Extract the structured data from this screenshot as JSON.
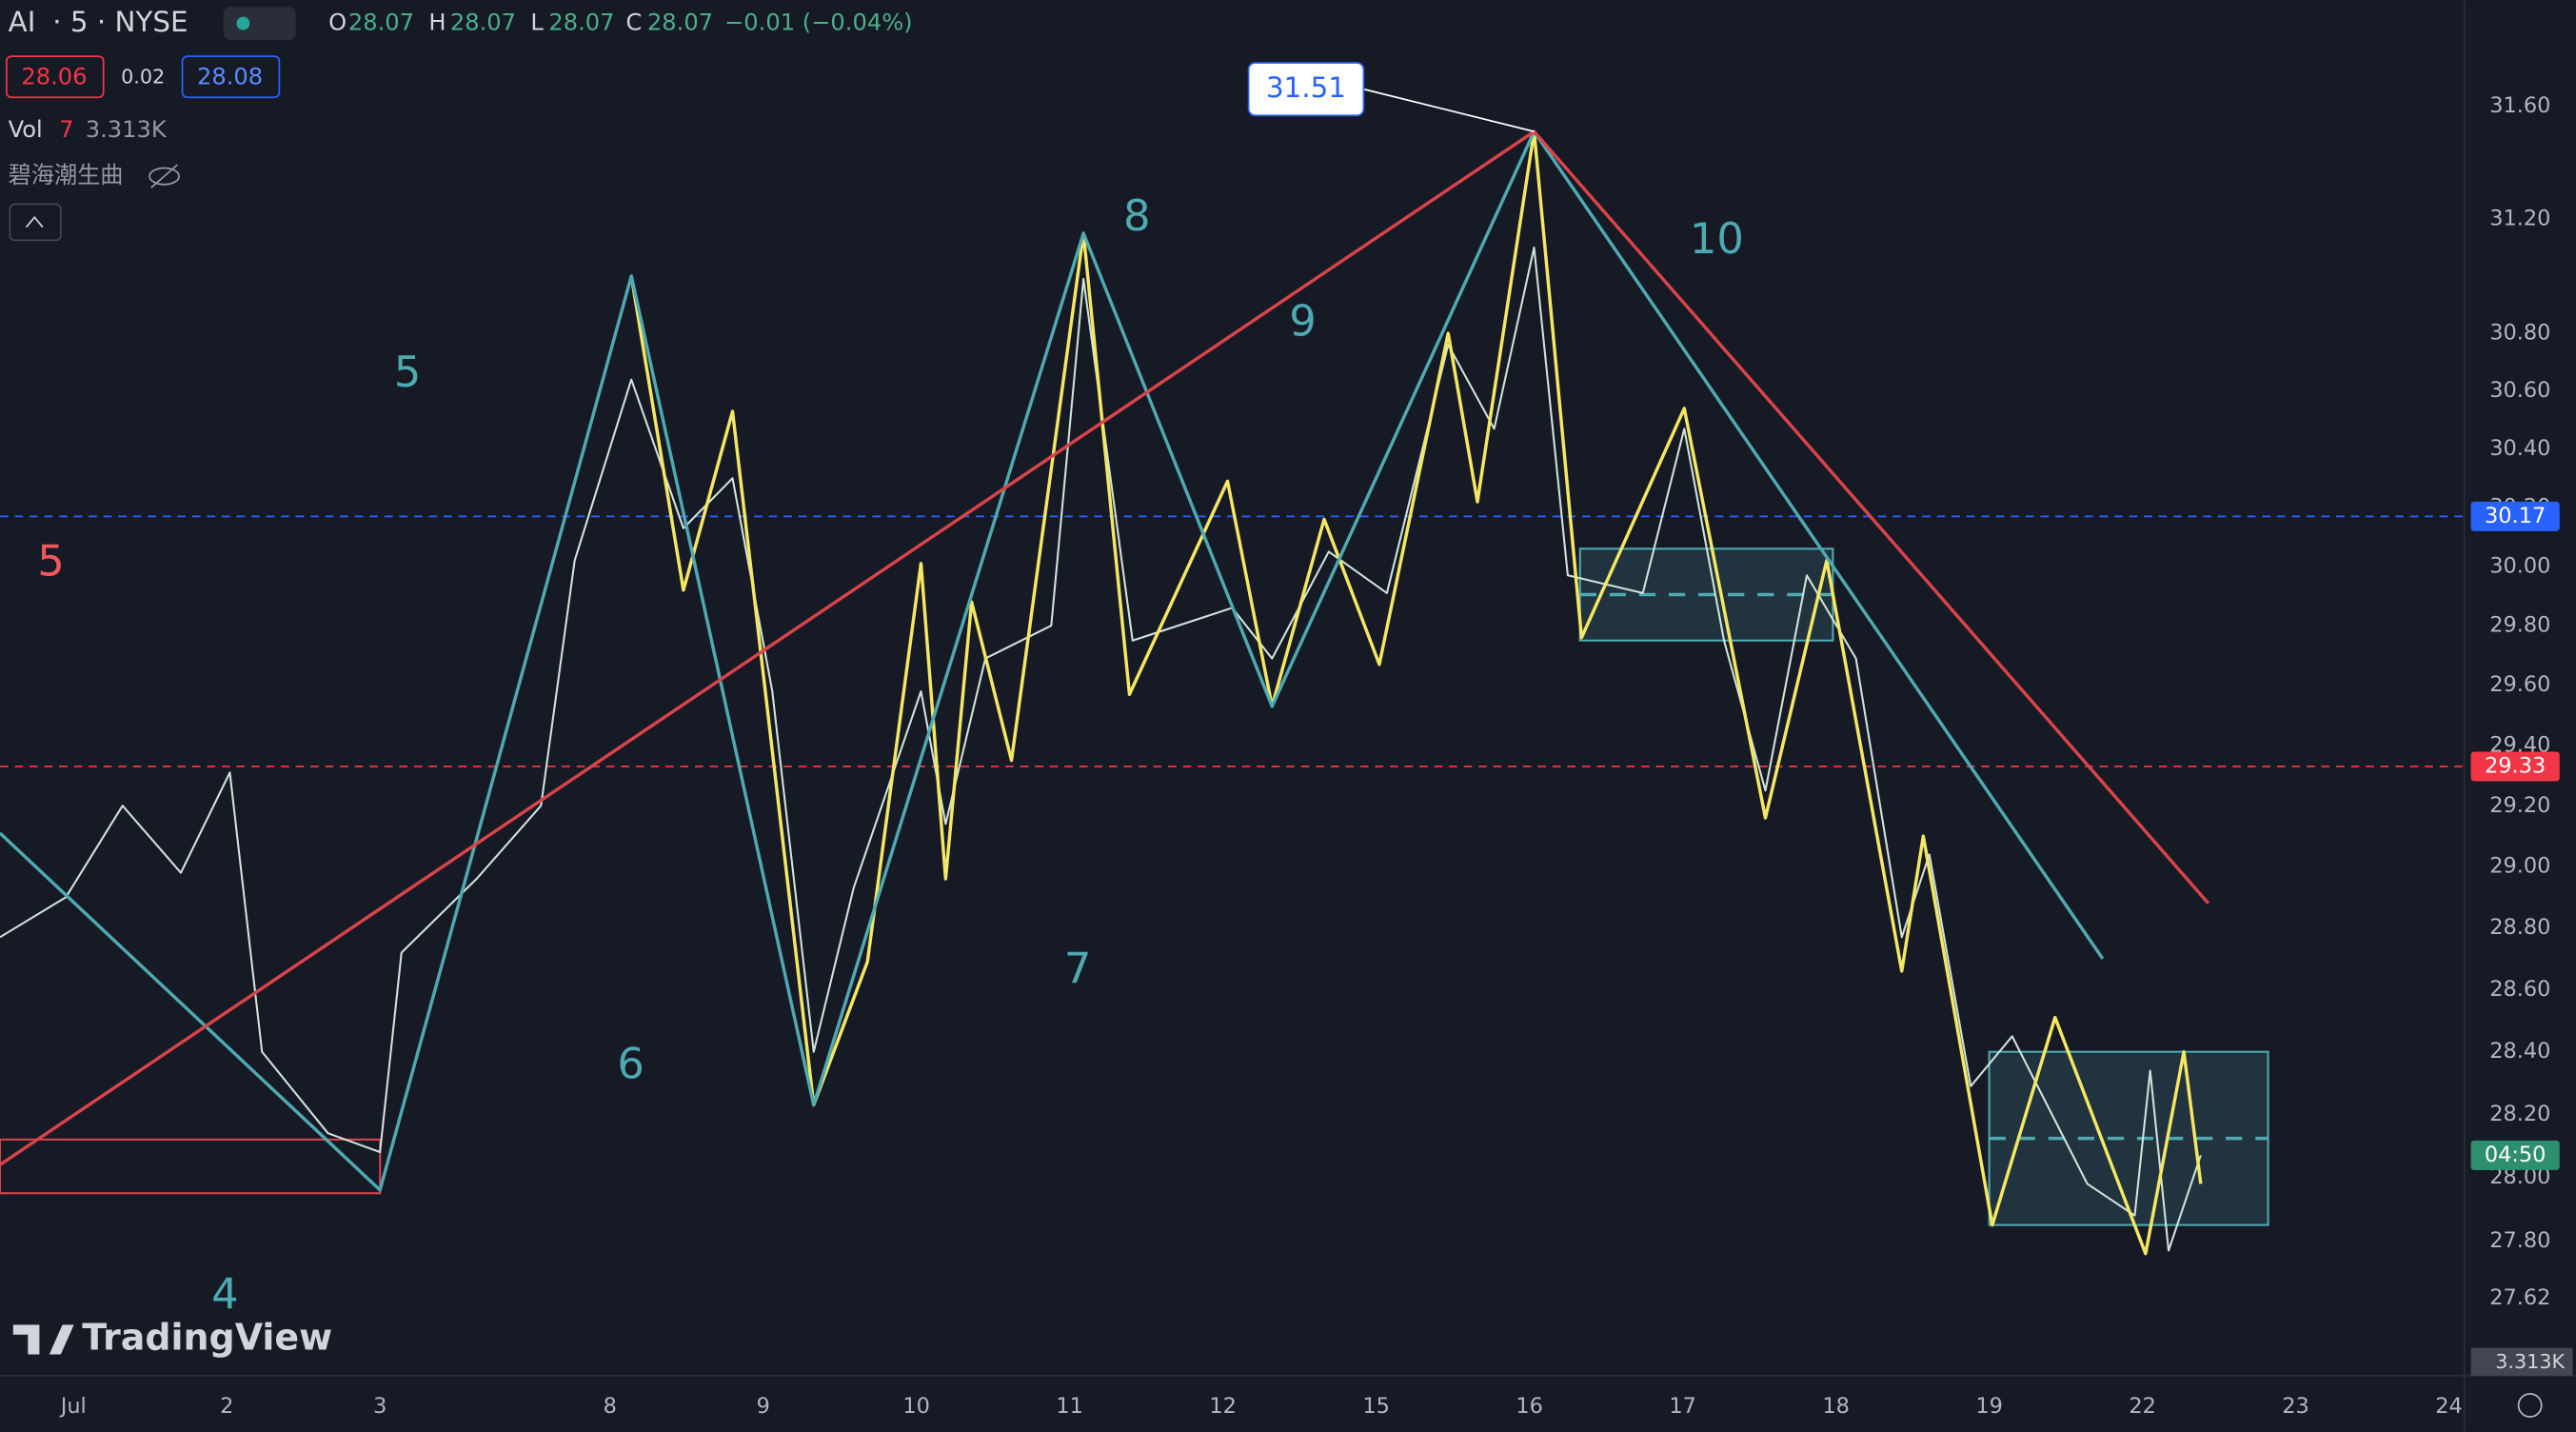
{
  "header": {
    "symbol": "AI",
    "interval": "· 5 · NYSE",
    "open_label": "O",
    "open": "28.07",
    "high_label": "H",
    "high": "28.07",
    "low_label": "L",
    "low": "28.07",
    "close_label": "C",
    "close": "28.07",
    "change": "−0.01 (−0.04%)",
    "bid": "28.06",
    "spread": "0.02",
    "ask": "28.08",
    "vol_label": "Vol",
    "vol_length": "7",
    "vol_value": "3.313K",
    "indicator": "碧海潮生曲"
  },
  "chart_data": {
    "type": "line",
    "log_y": true,
    "grid": false,
    "xlim": [
      -0.48,
      15.6
    ],
    "xticks": [
      {
        "value": 0,
        "label": "Jul"
      },
      {
        "value": 1,
        "label": "2"
      },
      {
        "value": 2,
        "label": "3"
      },
      {
        "value": 3.5,
        "label": "8"
      },
      {
        "value": 4.5,
        "label": "9"
      },
      {
        "value": 5.5,
        "label": "10"
      },
      {
        "value": 6.5,
        "label": "11"
      },
      {
        "value": 7.5,
        "label": "12"
      },
      {
        "value": 8.5,
        "label": "15"
      },
      {
        "value": 9.5,
        "label": "16"
      },
      {
        "value": 10.5,
        "label": "17"
      },
      {
        "value": 11.5,
        "label": "18"
      },
      {
        "value": 12.5,
        "label": "19"
      },
      {
        "value": 13.5,
        "label": "22"
      },
      {
        "value": 14.5,
        "label": "23"
      },
      {
        "value": 15.5,
        "label": "24"
      }
    ],
    "ylim": [
      27.38,
      31.98
    ],
    "yticks": [
      27.62,
      {
        "value": 27.8,
        "label": "27.80"
      },
      {
        "value": 28,
        "label": "28.00"
      },
      {
        "value": 28.2,
        "label": "28.20"
      },
      {
        "value": 28.4,
        "label": "28.40"
      },
      {
        "value": 28.6,
        "label": "28.60"
      },
      {
        "value": 28.8,
        "label": "28.80"
      },
      {
        "value": 29,
        "label": "29.00"
      },
      {
        "value": 29.2,
        "label": "29.20"
      },
      {
        "value": 29.4,
        "label": "29.40"
      },
      {
        "value": 29.6,
        "label": "29.60"
      },
      {
        "value": 29.8,
        "label": "29.80"
      },
      {
        "value": 30,
        "label": "30.00"
      },
      {
        "value": 30.2,
        "label": "30.20"
      },
      {
        "value": 30.4,
        "label": "30.40"
      },
      {
        "value": 30.6,
        "label": "30.60"
      },
      {
        "value": 30.8,
        "label": "30.80"
      },
      {
        "value": 31.2,
        "label": "31.20"
      },
      {
        "value": 31.6,
        "label": "31.60"
      }
    ],
    "series": [
      {
        "color": "#cfe3da",
        "x": [
          -0.48,
          -0.05,
          0.32,
          0.7,
          1.02,
          1.23,
          1.66,
          2.0,
          2.14,
          2.63,
          3.05,
          3.27,
          3.64,
          3.98,
          4.3,
          4.56,
          4.83,
          5.09,
          5.53,
          5.69,
          5.95,
          6.38,
          6.59,
          6.91,
          7.56,
          7.82,
          8.19,
          8.57,
          8.97,
          9.27,
          9.53,
          9.75,
          10.24,
          10.51,
          10.77,
          11.04,
          11.31,
          11.63,
          11.93,
          12.11,
          12.38,
          12.65,
          13.14,
          13.45,
          13.55,
          13.67,
          13.88
        ],
        "values": [
          28.77,
          28.9,
          29.2,
          28.98,
          29.31,
          28.4,
          28.14,
          28.08,
          28.72,
          28.96,
          29.2,
          30.02,
          30.64,
          30.13,
          30.3,
          29.58,
          28.4,
          28.93,
          29.58,
          29.14,
          29.69,
          29.8,
          30.99,
          29.75,
          29.86,
          29.69,
          30.05,
          29.91,
          30.76,
          30.47,
          31.1,
          29.97,
          29.91,
          30.47,
          29.75,
          29.25,
          29.97,
          29.69,
          28.77,
          29.04,
          28.29,
          28.45,
          27.98,
          27.88,
          28.34,
          27.77,
          28.07
        ]
      },
      {
        "color": "#f5e663",
        "x": [
          3.64,
          3.98,
          4.3,
          4.83,
          5.18,
          5.53,
          5.69,
          5.86,
          6.12,
          6.59,
          6.89,
          7.53,
          7.82,
          8.16,
          8.52,
          8.97,
          9.16,
          9.53,
          9.84,
          10.51,
          11.04,
          11.44,
          11.93,
          12.07,
          12.52,
          12.93,
          13.52,
          13.77,
          13.88
        ],
        "values": [
          31.0,
          29.92,
          30.53,
          28.23,
          28.69,
          30.01,
          28.96,
          29.88,
          29.35,
          31.15,
          29.57,
          30.29,
          29.53,
          30.16,
          29.67,
          30.8,
          30.22,
          31.51,
          29.76,
          30.54,
          29.16,
          30.02,
          28.66,
          29.1,
          27.85,
          28.51,
          27.76,
          28.4,
          27.98
        ]
      },
      {
        "color": "#4fa9b2",
        "x": [
          -0.48,
          2.0,
          3.64,
          4.83,
          6.59,
          7.82,
          9.53,
          13.24
        ],
        "values": [
          29.11,
          27.96,
          31.0,
          28.23,
          31.15,
          29.53,
          31.51,
          28.7
        ]
      },
      {
        "color": "#d9434a",
        "x": [
          -0.48,
          9.53,
          13.93
        ],
        "values": [
          28.04,
          31.51,
          28.88
        ]
      }
    ],
    "zones": [
      {
        "x": [
          9.83,
          11.48
        ],
        "y": [
          29.75,
          30.06
        ],
        "color": "#4fa9b2"
      },
      {
        "x": [
          12.5,
          14.32
        ],
        "y": [
          27.85,
          28.4
        ],
        "color": "#4fa9b2"
      },
      {
        "x": [
          -0.48,
          2.0
        ],
        "y": [
          27.95,
          28.12
        ],
        "color": "#d9434a"
      }
    ],
    "price_lines": [
      {
        "value": 30.17,
        "color": "#2962ff"
      },
      {
        "value": 29.33,
        "color": "#f23645"
      },
      {
        "value": {
          "value": 28.07,
          "label": "04:50"
        },
        "color": "#2e8f6e"
      }
    ],
    "callout": {
      "x": 9.53,
      "value": 31.51
    },
    "wave_labels": [
      {
        "text": "5",
        "color": "#f0595a"
      },
      {
        "text": "5",
        "color": "#4fa9b2"
      },
      {
        "text": "6",
        "color": "#4fa9b2"
      },
      {
        "text": "7",
        "color": "#4fa9b2"
      },
      {
        "text": "8",
        "color": "#4fa9b2"
      },
      {
        "text": "9",
        "color": "#4fa9b2"
      },
      {
        "text": "10",
        "color": "#4fa9b2"
      },
      {
        "text": "4",
        "color": "#4fa9b2"
      }
    ],
    "volume_tag": "3.313K"
  },
  "logo": "TradingView"
}
